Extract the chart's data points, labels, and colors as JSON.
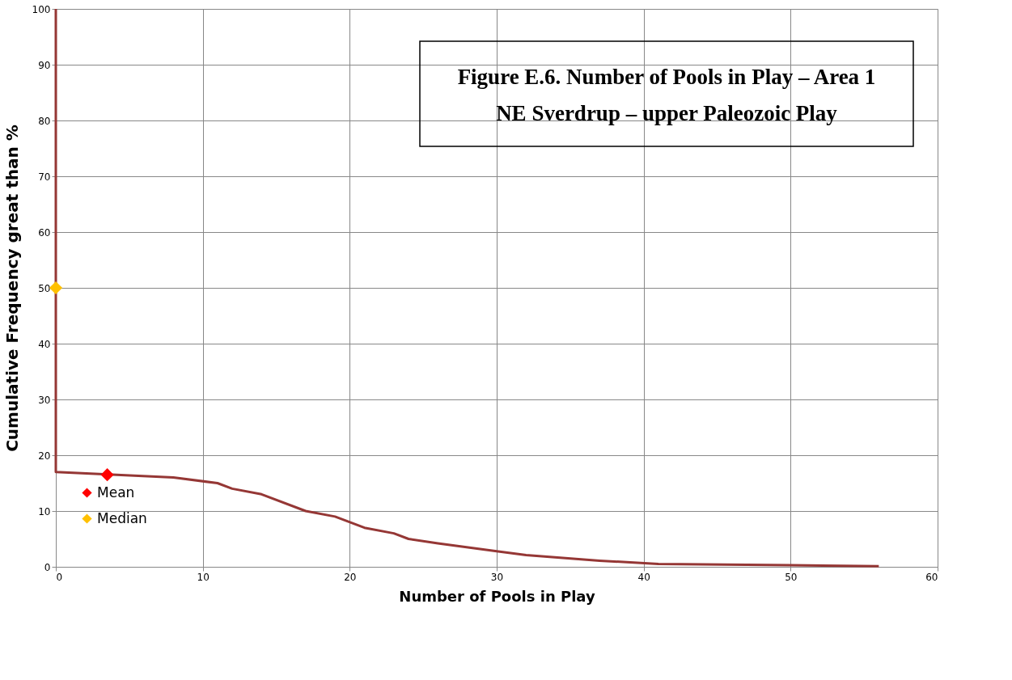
{
  "chart_data": {
    "type": "line",
    "title": "Figure E.6.  Number of Pools in Play – Area 1",
    "subtitle": "NE Sverdrup – upper Paleozoic Play",
    "xlabel": "Number of Pools in Play",
    "ylabel": "Cumulative Frequency great than %",
    "xlim": [
      0,
      60
    ],
    "xticks": [
      0,
      10,
      20,
      30,
      40,
      50,
      60
    ],
    "ylim": [
      0,
      100
    ],
    "yticks": [
      0,
      10,
      20,
      30,
      40,
      50,
      60,
      70,
      80,
      90,
      100
    ],
    "grid": true,
    "legend": "bottom left",
    "line_style": "solid",
    "series": [
      {
        "color": "#953735",
        "marker": "none",
        "x": [
          0,
          0,
          8,
          11,
          12,
          14,
          17,
          19,
          21,
          23,
          24,
          26,
          30,
          32,
          37,
          41,
          50,
          56
        ],
        "values": [
          100,
          17,
          16,
          15,
          14,
          13,
          10,
          9,
          7,
          6,
          5,
          4.2,
          2.8,
          2.1,
          1.1,
          0.5,
          0.3,
          0.1
        ]
      },
      {
        "type": "scatter",
        "name": "Mean",
        "color": "#ff0000",
        "marker": "diamond",
        "x": [
          3.5
        ],
        "values": [
          16.5
        ]
      },
      {
        "type": "scatter",
        "name": "Median",
        "color": "#ffc000",
        "marker": "diamond",
        "x": [
          0
        ],
        "values": [
          50
        ]
      }
    ]
  }
}
